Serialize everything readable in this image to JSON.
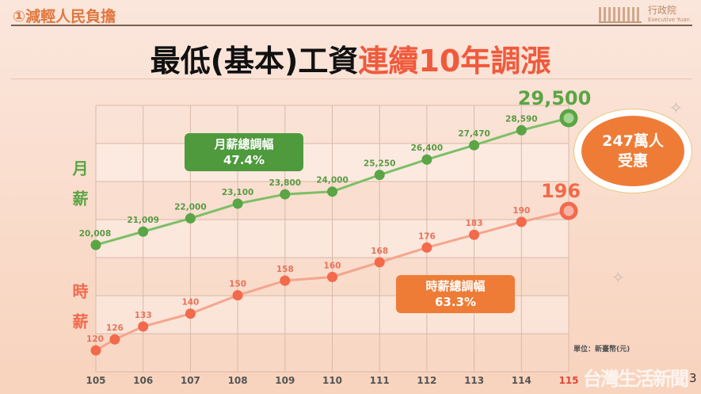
{
  "header": {
    "section": "①減輕人民負擔",
    "logo_text": "行政院",
    "logo_sub": "Executive Yuan",
    "title_black": "最低(基本)工資",
    "title_red": "連續10年調漲"
  },
  "side_labels": {
    "monthly": "月薪",
    "hourly": "時薪"
  },
  "boxes": {
    "monthly_title": "月薪總調幅",
    "monthly_value": "47.4%",
    "hourly_title": "時薪總調幅",
    "hourly_value": "63.3%"
  },
  "callout": {
    "line1": "247萬人",
    "line2": "受惠"
  },
  "footer": {
    "unit": "單位：新臺幣(元)",
    "watermark": "台灣生活新聞",
    "page": "3"
  },
  "colors": {
    "monthly": "#5aa545",
    "hourly": "#f26a4b",
    "monthly_line": "#7cbf66",
    "hourly_line": "#f4a58f"
  },
  "chart_data": {
    "type": "line",
    "title": "最低(基本)工資連續10年調漲",
    "xlabel": "",
    "ylabel": "",
    "categories": [
      "105",
      "106",
      "107",
      "108",
      "109",
      "110",
      "111",
      "112",
      "113",
      "114",
      "115"
    ],
    "series": [
      {
        "name": "月薪",
        "x": [
          105,
          106,
          107,
          108,
          109,
          110,
          111,
          112,
          113,
          114,
          115
        ],
        "values": [
          20008,
          21009,
          22000,
          23100,
          23800,
          24000,
          25250,
          26400,
          27470,
          28590,
          29500
        ],
        "labels": [
          "20,008",
          "21,009",
          "22,000",
          "23,100",
          "23,800",
          "24,000",
          "25,250",
          "26,400",
          "27,470",
          "28,590",
          "29,500"
        ]
      },
      {
        "name": "時薪",
        "x": [
          105,
          105.4,
          106,
          107,
          108,
          109,
          110,
          111,
          112,
          113,
          114,
          115
        ],
        "values": [
          120,
          126,
          133,
          140,
          150,
          158,
          160,
          168,
          176,
          183,
          190,
          196
        ],
        "labels": [
          "120",
          "126",
          "133",
          "140",
          "150",
          "158",
          "160",
          "168",
          "176",
          "183",
          "190",
          "196"
        ]
      }
    ],
    "grid": true
  }
}
